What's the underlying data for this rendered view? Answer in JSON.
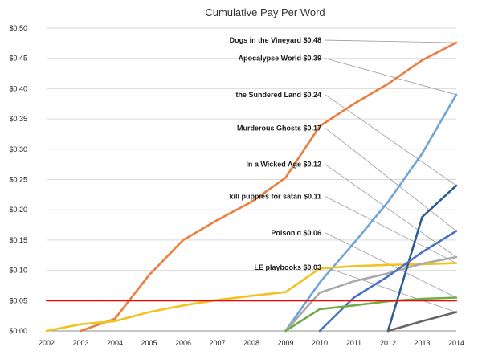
{
  "chart_data": {
    "type": "line",
    "title": "Cumulative  Pay Per Word",
    "xlabel": "",
    "ylabel": "",
    "x": [
      2002,
      2003,
      2004,
      2005,
      2006,
      2007,
      2008,
      2009,
      2010,
      2011,
      2012,
      2013,
      2014
    ],
    "x_tick_labels": [
      "2002",
      "2003",
      "2004",
      "2005",
      "2006",
      "2007",
      "2008",
      "2009",
      "2010",
      "2011",
      "2012",
      "2013",
      "2014"
    ],
    "xlim": [
      2002,
      2014
    ],
    "ylim": [
      0,
      0.5
    ],
    "y_ticks": [
      0,
      0.05,
      0.1,
      0.15,
      0.2,
      0.25,
      0.3,
      0.35,
      0.4,
      0.45,
      0.5
    ],
    "y_tick_labels": [
      "$0.00",
      "$0.05",
      "$0.10",
      "$0.15",
      "$0.20",
      "$0.25",
      "$0.30",
      "$0.35",
      "$0.40",
      "$0.45",
      "$0.50"
    ],
    "grid": true,
    "series": [
      {
        "color": "#ec7d3c",
        "values": [
          [
            2003,
            0
          ],
          [
            2004,
            0.02
          ],
          [
            2005,
            0.092
          ],
          [
            2006,
            0.15
          ],
          [
            2007,
            0.183
          ],
          [
            2008,
            0.213
          ],
          [
            2009,
            0.253
          ],
          [
            2010,
            0.338
          ],
          [
            2011,
            0.375
          ],
          [
            2012,
            0.408
          ],
          [
            2013,
            0.447
          ],
          [
            2014,
            0.476
          ]
        ]
      },
      {
        "color": "#6fa4d9",
        "values": [
          [
            2009,
            0
          ],
          [
            2010,
            0.08
          ],
          [
            2011,
            0.145
          ],
          [
            2012,
            0.213
          ],
          [
            2013,
            0.293
          ],
          [
            2014,
            0.39
          ]
        ]
      },
      {
        "color": "#f2c221",
        "values": [
          [
            2002,
            0
          ],
          [
            2003,
            0.011
          ],
          [
            2004,
            0.016
          ],
          [
            2005,
            0.031
          ],
          [
            2006,
            0.042
          ],
          [
            2007,
            0.051
          ],
          [
            2008,
            0.058
          ],
          [
            2009,
            0.064
          ],
          [
            2010,
            0.103
          ],
          [
            2011,
            0.107
          ],
          [
            2012,
            0.109
          ],
          [
            2013,
            0.11
          ],
          [
            2014,
            0.112
          ]
        ]
      },
      {
        "color": "#a9a9a9",
        "values": [
          [
            2009,
            0
          ],
          [
            2010,
            0.063
          ],
          [
            2011,
            0.082
          ],
          [
            2012,
            0.095
          ],
          [
            2013,
            0.111
          ],
          [
            2014,
            0.122
          ]
        ]
      },
      {
        "color": "#2e5d8f",
        "values": [
          [
            2012,
            0
          ],
          [
            2013,
            0.188
          ],
          [
            2014,
            0.24
          ]
        ]
      },
      {
        "color": "#4a72c4",
        "values": [
          [
            2010,
            0
          ],
          [
            2011,
            0.055
          ],
          [
            2012,
            0.09
          ],
          [
            2013,
            0.13
          ],
          [
            2014,
            0.165
          ]
        ]
      },
      {
        "color": "#71ad47",
        "values": [
          [
            2009,
            0
          ],
          [
            2010,
            0.036
          ],
          [
            2011,
            0.042
          ],
          [
            2012,
            0.049
          ],
          [
            2013,
            0.053
          ],
          [
            2014,
            0.055
          ]
        ]
      },
      {
        "color": "#666666",
        "values": [
          [
            2012,
            0
          ],
          [
            2013,
            0.016
          ],
          [
            2014,
            0.031
          ]
        ]
      },
      {
        "color": "#ff0000",
        "values": [
          [
            2002,
            0.05
          ],
          [
            2014,
            0.05
          ]
        ]
      }
    ],
    "annotations": [
      {
        "text": "Dogs in the Vineyard $0.48",
        "target": [
          2014,
          0.476
        ],
        "label_y": 0.48
      },
      {
        "text": "Apocalypse World $0.39",
        "target": [
          2014,
          0.39
        ],
        "label_y": 0.45
      },
      {
        "text": "the Sundered Land $0.24",
        "target": [
          2014,
          0.24
        ],
        "label_y": 0.39
      },
      {
        "text": "Murderous Ghosts $0.17",
        "target": [
          2014,
          0.165
        ],
        "label_y": 0.335
      },
      {
        "text": "In a Wicked Age $0.12",
        "target": [
          2014,
          0.122
        ],
        "label_y": 0.275
      },
      {
        "text": "kill puppies for satan $0.11",
        "target": [
          2014,
          0.112
        ],
        "label_y": 0.222
      },
      {
        "text": "Poison'd $0.06",
        "target": [
          2014,
          0.055
        ],
        "label_y": 0.162
      },
      {
        "text": "LE playbooks $0.03",
        "target": [
          2014,
          0.031
        ],
        "label_y": 0.105
      }
    ]
  }
}
